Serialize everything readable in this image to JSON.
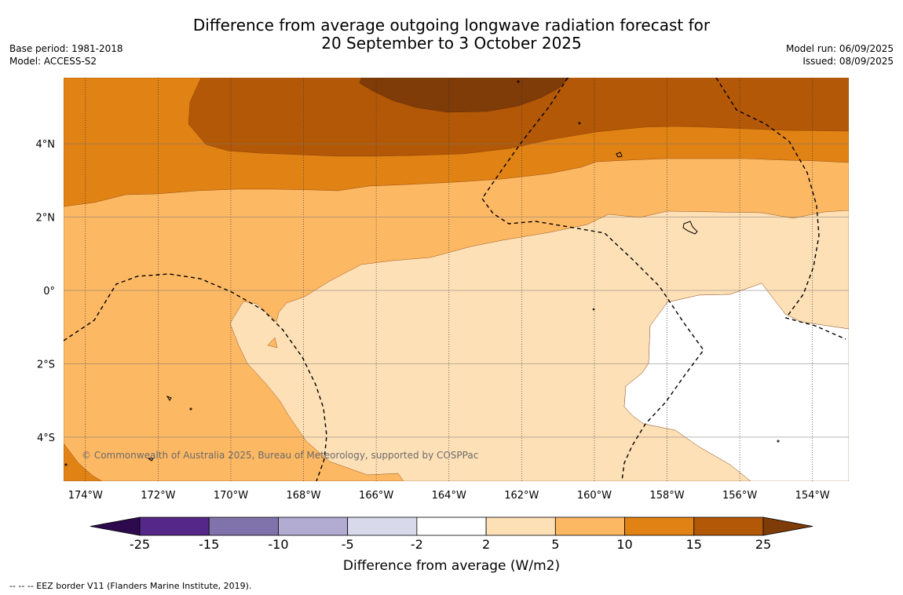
{
  "header": {
    "title_line1": "Difference from average outgoing longwave radiation forecast for",
    "title_line2": "20 September to 3 October 2025",
    "base_period": "Base period: 1981-2018",
    "model": "Model: ACCESS-S2",
    "model_run": "Model run: 06/09/2025",
    "issued": "Issued: 08/09/2025"
  },
  "map": {
    "extent": {
      "lon_min": -174.6,
      "lon_max": -153.0,
      "lat_min": -5.2,
      "lat_max": 5.8
    },
    "lon_ticks": [
      {
        "value": -174,
        "label": "174°W"
      },
      {
        "value": -172,
        "label": "172°W"
      },
      {
        "value": -170,
        "label": "170°W"
      },
      {
        "value": -168,
        "label": "168°W"
      },
      {
        "value": -166,
        "label": "166°W"
      },
      {
        "value": -164,
        "label": "164°W"
      },
      {
        "value": -162,
        "label": "162°W"
      },
      {
        "value": -160,
        "label": "160°W"
      },
      {
        "value": -158,
        "label": "158°W"
      },
      {
        "value": -156,
        "label": "156°W"
      },
      {
        "value": -154,
        "label": "154°W"
      }
    ],
    "lat_ticks": [
      {
        "value": 4,
        "label": "4°N"
      },
      {
        "value": 2,
        "label": "2°N"
      },
      {
        "value": 0,
        "label": "0°"
      },
      {
        "value": -2,
        "label": "2°S"
      },
      {
        "value": -4,
        "label": "4°S"
      }
    ],
    "credit": "© Commonwealth of Australia 2025, Bureau of Meteorology, supported by COSPPac"
  },
  "colorbar": {
    "title": "Difference from average (W/m2)",
    "labels": [
      "-25",
      "-15",
      "-10",
      "-5",
      "-2",
      "2",
      "5",
      "10",
      "15",
      "25"
    ],
    "colors": [
      "#2d0a4e",
      "#542788",
      "#8073ac",
      "#b2abd2",
      "#d8daeb",
      "#ffffff",
      "#fee0b6",
      "#fdb863",
      "#e08214",
      "#b35806",
      "#7f3b08"
    ]
  },
  "footer": "--  --  -- EEZ border V11 (Flanders Marine Institute, 2019)."
}
